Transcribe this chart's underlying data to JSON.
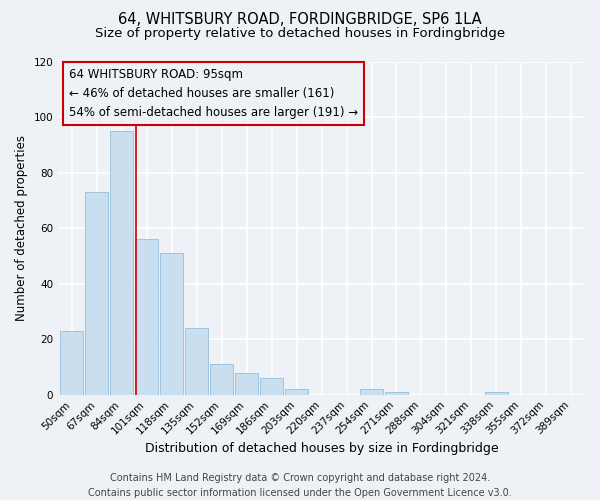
{
  "title": "64, WHITSBURY ROAD, FORDINGBRIDGE, SP6 1LA",
  "subtitle": "Size of property relative to detached houses in Fordingbridge",
  "xlabel": "Distribution of detached houses by size in Fordingbridge",
  "ylabel": "Number of detached properties",
  "bar_labels": [
    "50sqm",
    "67sqm",
    "84sqm",
    "101sqm",
    "118sqm",
    "135sqm",
    "152sqm",
    "169sqm",
    "186sqm",
    "203sqm",
    "220sqm",
    "237sqm",
    "254sqm",
    "271sqm",
    "288sqm",
    "304sqm",
    "321sqm",
    "338sqm",
    "355sqm",
    "372sqm",
    "389sqm"
  ],
  "bar_values": [
    23,
    73,
    95,
    56,
    51,
    24,
    11,
    8,
    6,
    2,
    0,
    0,
    2,
    1,
    0,
    0,
    0,
    1,
    0,
    0,
    0
  ],
  "bar_color": "#c9dff0",
  "bar_edge_color": "#a0c4df",
  "vline_x_bar_index": 2.58,
  "vline_color": "#cc0000",
  "ylim": [
    0,
    120
  ],
  "yticks": [
    0,
    20,
    40,
    60,
    80,
    100,
    120
  ],
  "annotation_line1": "64 WHITSBURY ROAD: 95sqm",
  "annotation_line2": "← 46% of detached houses are smaller (161)",
  "annotation_line3": "54% of semi-detached houses are larger (191) →",
  "footer_line1": "Contains HM Land Registry data © Crown copyright and database right 2024.",
  "footer_line2": "Contains public sector information licensed under the Open Government Licence v3.0.",
  "background_color": "#eef2f7",
  "grid_color": "#ffffff",
  "title_fontsize": 10.5,
  "subtitle_fontsize": 9.5,
  "xlabel_fontsize": 9,
  "ylabel_fontsize": 8.5,
  "tick_fontsize": 7.5,
  "annotation_fontsize": 8.5,
  "footer_fontsize": 7
}
